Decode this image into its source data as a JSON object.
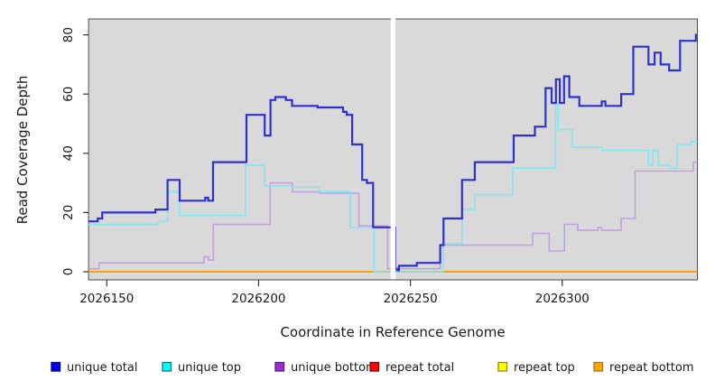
{
  "figure": {
    "background": "#ffffff",
    "plot_background": "#d9d9d9",
    "plot_border_color": "#4d4d4d",
    "tick_color": "#333333",
    "text_color": "#1a1a1a"
  },
  "chart_data": {
    "type": "line",
    "step": true,
    "title": "",
    "xlabel": "Coordinate in Reference Genome",
    "ylabel": "Read Coverage Depth",
    "xlim": [
      2026144,
      2026344.5
    ],
    "ylim": [
      0,
      80
    ],
    "x_ticks": [
      2026150,
      2026200,
      2026250,
      2026300
    ],
    "y_ticks": [
      0,
      20,
      40,
      60,
      80
    ],
    "grid": false,
    "legend_position": "bottom",
    "gap": {
      "x_start": 2026243.5,
      "x_end": 2026245.1,
      "color": "#ffffff"
    },
    "draw_order": [
      3,
      4,
      5,
      2,
      1,
      0
    ],
    "series": [
      {
        "name": "unique total",
        "line_color": "#3030d0",
        "legend_fill": "#0000ee",
        "legend_border": "#000099",
        "line_width": 2.2,
        "points": [
          [
            2026144,
            17
          ],
          [
            2026147,
            18
          ],
          [
            2026148.5,
            20
          ],
          [
            2026166,
            21
          ],
          [
            2026170,
            31
          ],
          [
            2026174,
            24
          ],
          [
            2026182.4,
            25
          ],
          [
            2026183.4,
            24
          ],
          [
            2026185,
            37
          ],
          [
            2026196,
            53
          ],
          [
            2026202,
            46
          ],
          [
            2026203.9,
            58
          ],
          [
            2026205.5,
            59
          ],
          [
            2026209,
            58
          ],
          [
            2026211,
            56
          ],
          [
            2026219.4,
            55.5
          ],
          [
            2026227.8,
            54
          ],
          [
            2026229,
            53
          ],
          [
            2026230.8,
            43
          ],
          [
            2026234.1,
            31
          ],
          [
            2026235.7,
            30
          ],
          [
            2026237.7,
            15
          ],
          [
            2026245,
            1
          ],
          [
            2026245.6,
            0.5
          ],
          [
            2026246.2,
            2
          ],
          [
            2026252.1,
            3
          ],
          [
            2026259.8,
            9
          ],
          [
            2026260.9,
            18
          ],
          [
            2026267,
            31
          ],
          [
            2026271.2,
            37
          ],
          [
            2026284,
            46
          ],
          [
            2026291,
            49
          ],
          [
            2026294.5,
            62
          ],
          [
            2026296.5,
            57
          ],
          [
            2026297.9,
            65
          ],
          [
            2026299.2,
            57
          ],
          [
            2026300.6,
            66
          ],
          [
            2026302.3,
            59
          ],
          [
            2026305.6,
            56
          ],
          [
            2026313,
            57.5
          ],
          [
            2026314.2,
            56
          ],
          [
            2026319.4,
            60
          ],
          [
            2026323.4,
            76
          ],
          [
            2026328.4,
            70
          ],
          [
            2026330.4,
            74
          ],
          [
            2026332.4,
            70
          ],
          [
            2026335.2,
            68
          ],
          [
            2026338.8,
            78
          ],
          [
            2026344,
            80
          ]
        ]
      },
      {
        "name": "unique top",
        "line_color": "#7fe8f0",
        "legend_fill": "#00ffff",
        "legend_border": "#007d7d",
        "line_width": 1.6,
        "points": [
          [
            2026144,
            16
          ],
          [
            2026167,
            17
          ],
          [
            2026170,
            27
          ],
          [
            2026173.9,
            19
          ],
          [
            2026195.7,
            36
          ],
          [
            2026202,
            29
          ],
          [
            2026211,
            28.5
          ],
          [
            2026220,
            27
          ],
          [
            2026230.2,
            15
          ],
          [
            2026238,
            0
          ],
          [
            2026260.9,
            9.5
          ],
          [
            2026267,
            21
          ],
          [
            2026271.2,
            26
          ],
          [
            2026283.7,
            35
          ],
          [
            2026297.8,
            57
          ],
          [
            2026298.7,
            48
          ],
          [
            2026303.2,
            42
          ],
          [
            2026313,
            41
          ],
          [
            2026328.4,
            36
          ],
          [
            2026329.8,
            41
          ],
          [
            2026331.6,
            36
          ],
          [
            2026335.4,
            35
          ],
          [
            2026337.8,
            43
          ],
          [
            2026342.5,
            44
          ]
        ]
      },
      {
        "name": "unique bottom",
        "line_color": "#c3a0e0",
        "legend_fill": "#9932cc",
        "legend_border": "#5a1a8a",
        "line_width": 1.6,
        "points": [
          [
            2026144,
            1
          ],
          [
            2026147.5,
            3
          ],
          [
            2026182,
            5
          ],
          [
            2026183.5,
            4
          ],
          [
            2026185.1,
            16
          ],
          [
            2026203.8,
            30
          ],
          [
            2026211.1,
            27
          ],
          [
            2026220,
            26.5
          ],
          [
            2026233,
            15.5
          ],
          [
            2026242.5,
            1
          ],
          [
            2026259.8,
            9
          ],
          [
            2026290.2,
            13
          ],
          [
            2026295.7,
            7
          ],
          [
            2026300.7,
            16
          ],
          [
            2026305.1,
            14
          ],
          [
            2026311.8,
            15
          ],
          [
            2026313,
            14
          ],
          [
            2026319.4,
            18
          ],
          [
            2026324,
            34
          ],
          [
            2026343.2,
            37
          ]
        ]
      },
      {
        "name": "repeat total",
        "line_color": "#cc0000",
        "legend_fill": "#ff0000",
        "legend_border": "#8b0000",
        "line_width": 1.5,
        "points": [
          [
            2026144,
            0
          ]
        ]
      },
      {
        "name": "repeat top",
        "line_color": "#ffff00",
        "legend_fill": "#ffff00",
        "legend_border": "#8f8f00",
        "line_width": 1.5,
        "points": [
          [
            2026144,
            0
          ]
        ]
      },
      {
        "name": "repeat bottom",
        "line_color": "#ff9d00",
        "legend_fill": "#ffa500",
        "legend_border": "#b87300",
        "line_width": 1.8,
        "points": [
          [
            2026144,
            0
          ]
        ]
      }
    ]
  }
}
